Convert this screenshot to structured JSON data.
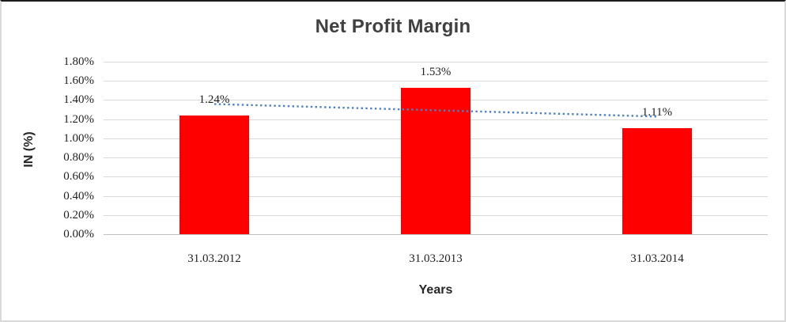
{
  "chart_data": {
    "type": "bar",
    "title": "Net Profit Margin",
    "categories": [
      "31.03.2012",
      "31.03.2013",
      "31.03.2014"
    ],
    "values": [
      1.24,
      1.53,
      1.11
    ],
    "data_labels": [
      "1.24%",
      "1.53%",
      "1.11%"
    ],
    "xlabel": "Years",
    "ylabel": "IN (%)",
    "ylim": [
      0,
      1.8
    ],
    "ytick_step": 0.2,
    "ytick_labels": [
      "1.80%",
      "1.60%",
      "1.40%",
      "1.20%",
      "1.00%",
      "0.80%",
      "0.60%",
      "0.40%",
      "0.20%",
      "0.00%"
    ],
    "grid": true,
    "legend": "none",
    "trendline": {
      "type": "linear",
      "style": "dotted",
      "endpoints_pct": [
        1.358,
        1.228
      ]
    },
    "colors": {
      "bar": "#ff0000",
      "trendline": "#4e81bd",
      "gridline": "#d9d9d9",
      "axis_line": "#bfbfbf",
      "title_text": "#404040",
      "tick_text": "#1f1f1f",
      "background": "#ffffff",
      "frame_border": "#d9d9d9",
      "frame_top_border": "#1a1a1a"
    }
  }
}
